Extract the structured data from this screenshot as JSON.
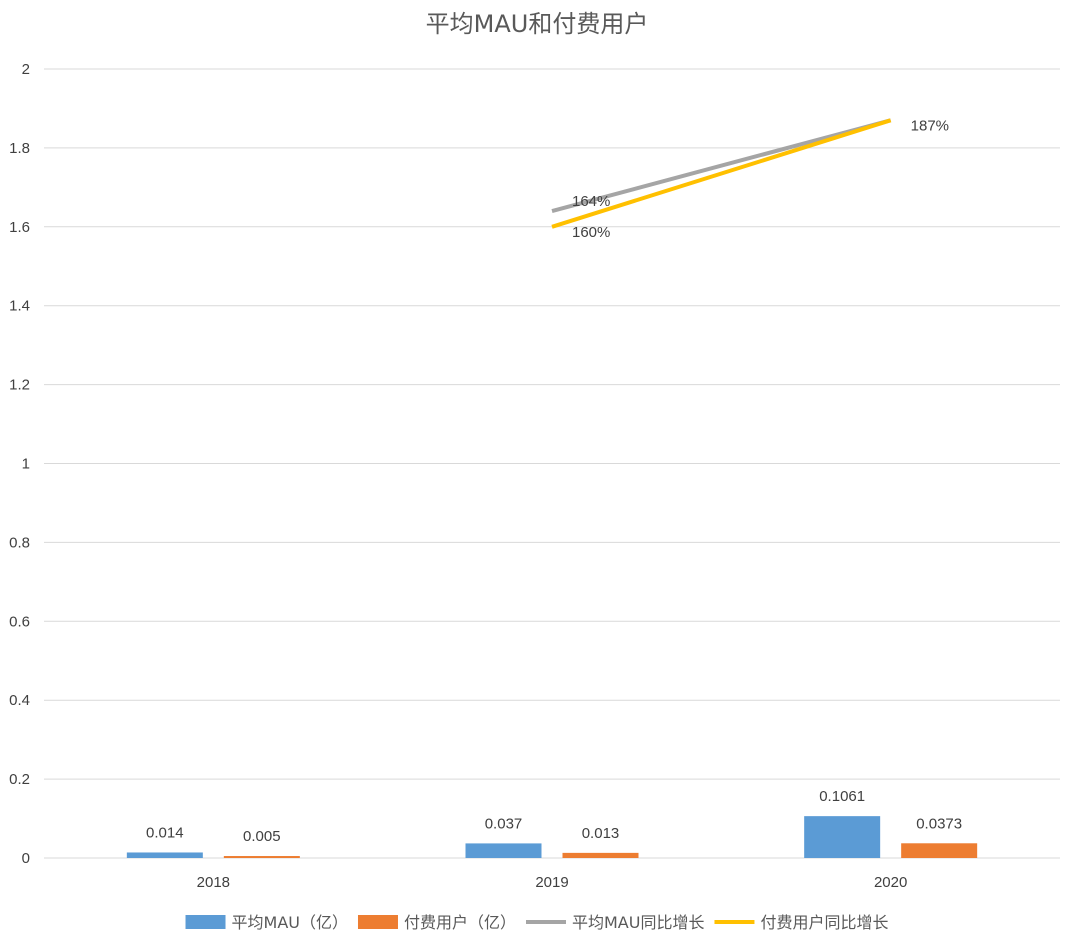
{
  "chart_data": {
    "type": "bar",
    "title": "平均MAU和付费用户",
    "categories": [
      "2018",
      "2019",
      "2020"
    ],
    "ylim": [
      0,
      2
    ],
    "yticks": [
      0,
      0.2,
      0.4,
      0.6,
      0.8,
      1,
      1.2,
      1.4,
      1.6,
      1.8,
      2
    ],
    "ytick_labels": [
      "0",
      "0.2",
      "0.4",
      "0.6",
      "0.8",
      "1",
      "1.2",
      "1.4",
      "1.6",
      "1.8",
      "2"
    ],
    "grid": true,
    "legend_position": "bottom",
    "series": [
      {
        "name": "平均MAU（亿）",
        "kind": "bar",
        "color": "#5b9bd5",
        "values": [
          0.014,
          0.037,
          0.1061
        ],
        "labels": [
          "0.014",
          "0.037",
          "0.1061"
        ]
      },
      {
        "name": "付费用户（亿）",
        "kind": "bar",
        "color": "#ed7d31",
        "values": [
          0.005,
          0.013,
          0.0373
        ],
        "labels": [
          "0.005",
          "0.013",
          "0.0373"
        ]
      },
      {
        "name": "平均MAU同比增长",
        "kind": "line",
        "color": "#a5a5a5",
        "values": [
          null,
          1.64,
          1.87
        ],
        "labels": [
          "",
          "164%",
          ""
        ]
      },
      {
        "name": "付费用户同比增长",
        "kind": "line",
        "color": "#ffc000",
        "values": [
          null,
          1.6,
          1.87
        ],
        "labels": [
          "",
          "160%",
          "187%"
        ]
      }
    ]
  }
}
